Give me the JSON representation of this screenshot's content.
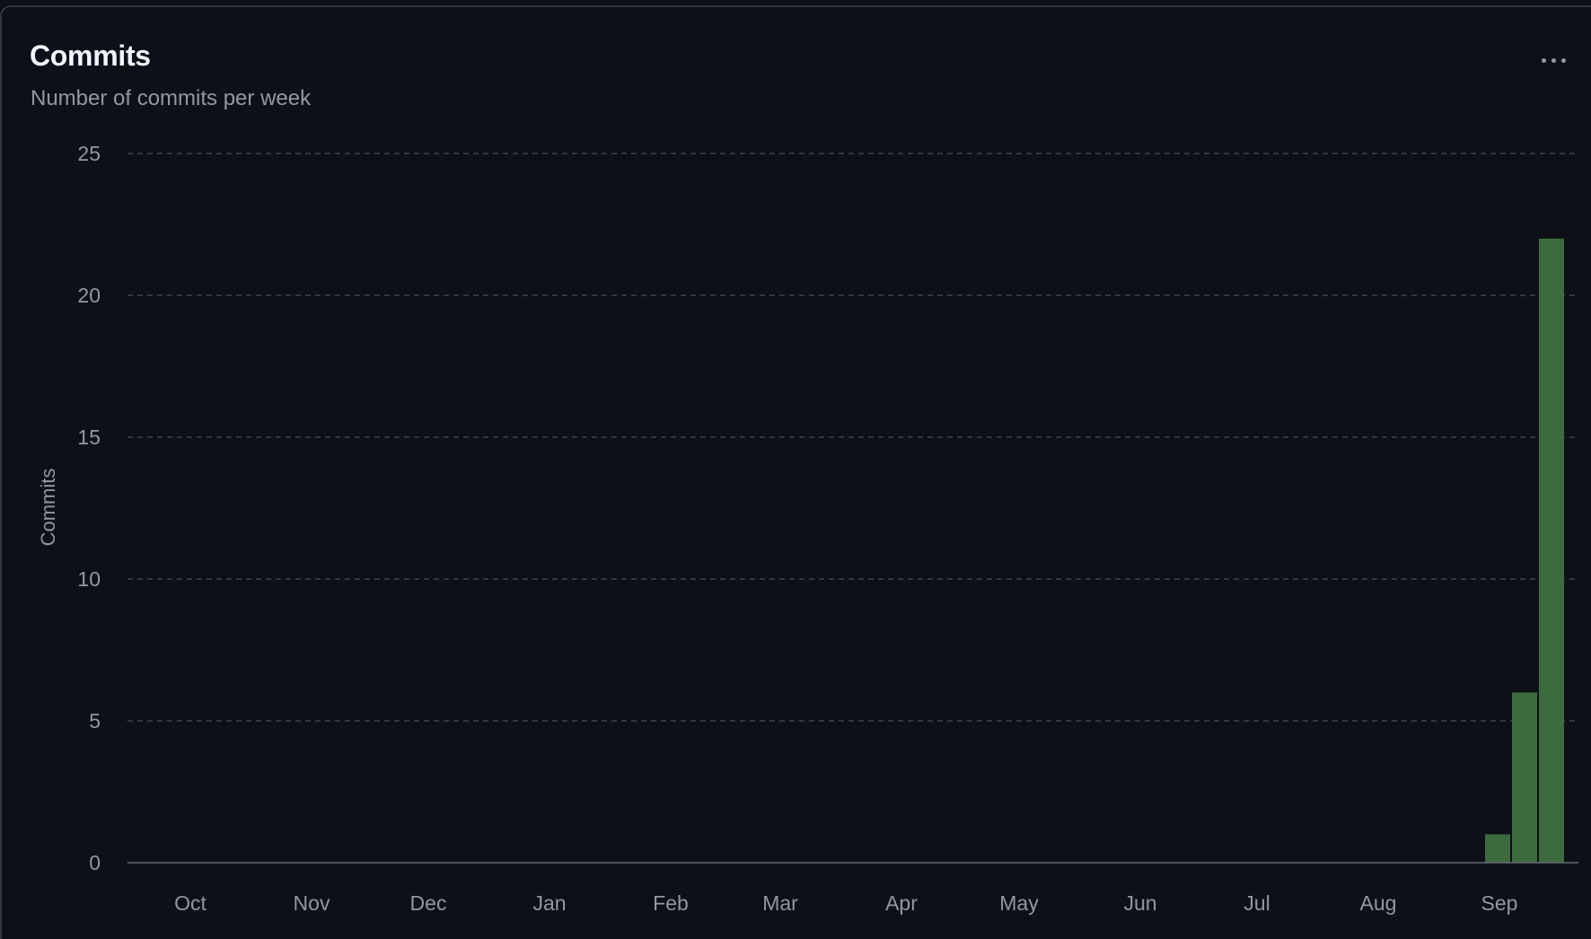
{
  "header": {
    "title": "Commits",
    "subtitle": "Number of commits per week"
  },
  "menu": {
    "icon": "kebab-horizontal-icon"
  },
  "colors": {
    "background": "#0d1117",
    "bar": "#3d6b3f",
    "grid": "#3d444d",
    "text": "#9198a1",
    "title": "#f0f6fc"
  },
  "chart_data": {
    "type": "bar",
    "title": "Commits",
    "subtitle": "Number of commits per week",
    "xlabel": "",
    "ylabel": "Commits",
    "ylim": [
      0,
      25
    ],
    "yticks": [
      0,
      5,
      10,
      15,
      20,
      25
    ],
    "grid": true,
    "legend": "none",
    "x_tick_labels": [
      "Oct",
      "Nov",
      "Dec",
      "Jan",
      "Feb",
      "Mar",
      "Apr",
      "May",
      "Jun",
      "Jul",
      "Aug",
      "Sep"
    ],
    "bars": [
      {
        "week": "Sep week 2",
        "value": 1
      },
      {
        "week": "Sep week 3",
        "value": 6
      },
      {
        "week": "Sep week 4",
        "value": 22
      }
    ]
  }
}
